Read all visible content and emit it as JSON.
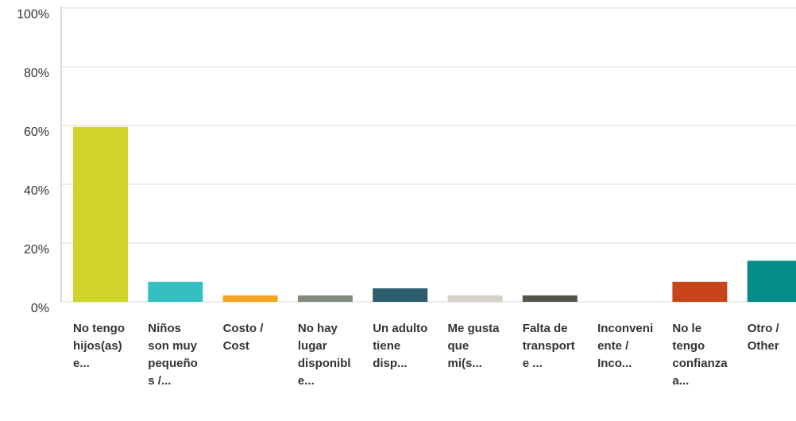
{
  "chart_data": {
    "type": "bar",
    "categories": [
      "No tengo hijos(as) e...",
      "Niños son muy pequeños /...",
      "Costo / Cost",
      "No hay lugar disponible...",
      "Un adulto tiene disp...",
      "Me gusta que mi(s...",
      "Falta de transporte ...",
      "Inconveniente / Inco...",
      "No le tengo confianza a...",
      "Otro / Other"
    ],
    "values": [
      59.5,
      6.8,
      2.2,
      2.2,
      4.6,
      2.2,
      2.2,
      0,
      6.8,
      14
    ],
    "colors": [
      "#d0d42b",
      "#35bfc1",
      "#f4a623",
      "#848b7e",
      "#2d5e6d",
      "#d4d2c9",
      "#55564b",
      "#999999",
      "#c9431b",
      "#078c8c"
    ],
    "ylim": [
      0,
      100
    ],
    "yticks": [
      {
        "value": 0,
        "label": "0%"
      },
      {
        "value": 20,
        "label": "20%"
      },
      {
        "value": 40,
        "label": "40%"
      },
      {
        "value": 60,
        "label": "60%"
      },
      {
        "value": 80,
        "label": "80%"
      },
      {
        "value": 100,
        "label": "100%"
      }
    ],
    "grid": true
  }
}
